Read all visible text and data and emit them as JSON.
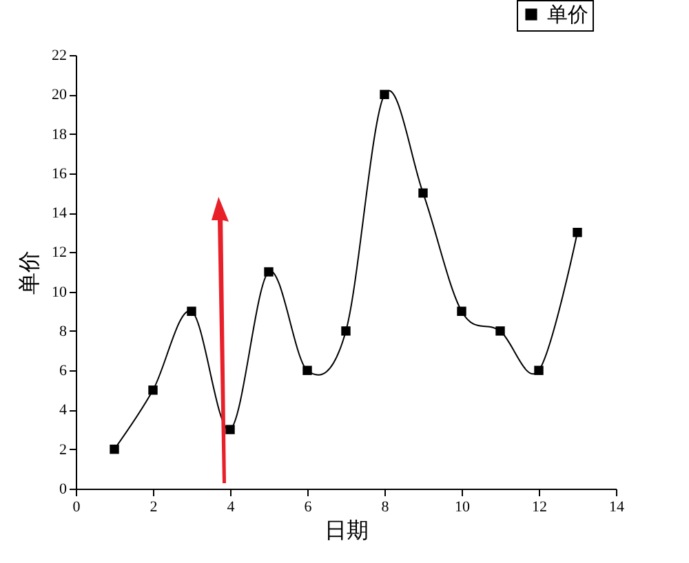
{
  "chart_data": {
    "type": "line",
    "xlabel": "日期",
    "ylabel": "单价",
    "x": [
      1,
      2,
      3,
      4,
      5,
      6,
      7,
      8,
      9,
      10,
      11,
      12,
      13
    ],
    "series": [
      {
        "name": "单价",
        "color": "#000000",
        "values": [
          2,
          5,
          9,
          3,
          11,
          6,
          8,
          20,
          15,
          9,
          8,
          6,
          13
        ]
      }
    ],
    "xlim": [
      0,
      14
    ],
    "xticks": [
      0,
      2,
      4,
      6,
      8,
      10,
      12,
      14
    ],
    "ylim": [
      0,
      22
    ],
    "yticks": [
      0,
      2,
      4,
      6,
      8,
      10,
      12,
      14,
      16,
      18,
      20,
      22
    ],
    "marker": "square",
    "line_style": "solid",
    "legend": "top right",
    "grid": false
  }
}
